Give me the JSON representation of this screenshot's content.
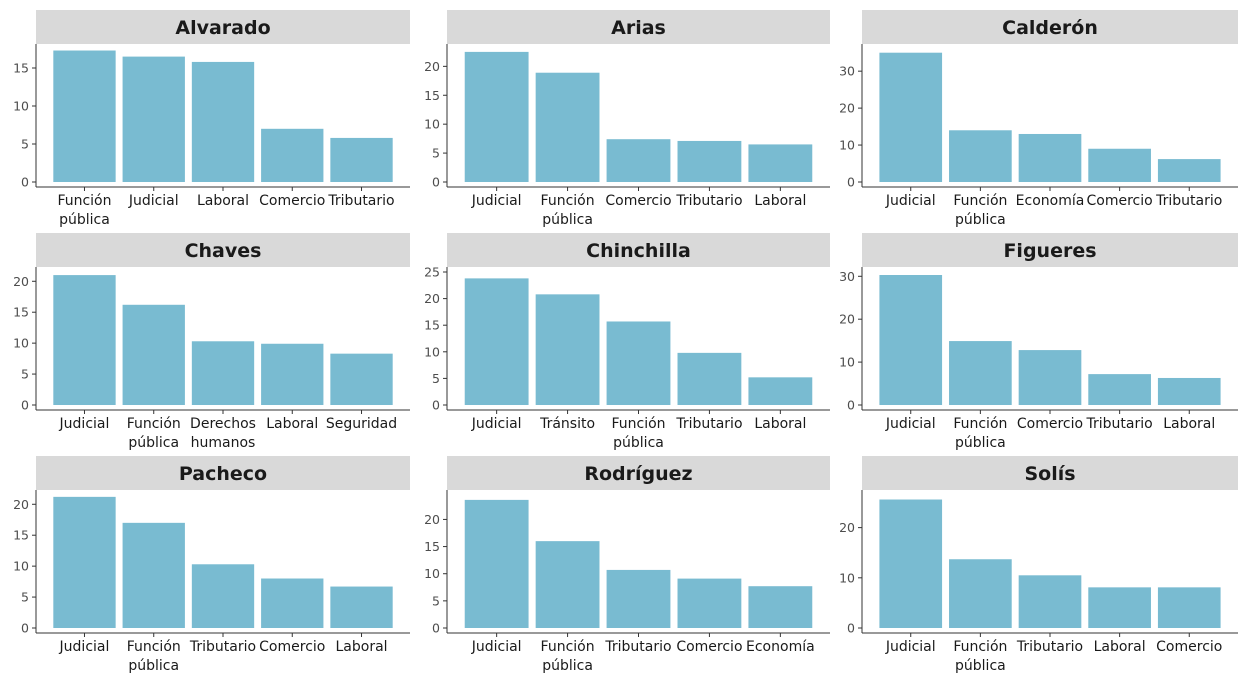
{
  "colors": {
    "bar": "#79bbd1",
    "strip": "#d9d9d9",
    "axis": "#333333",
    "text": "#1a1a1a",
    "tick": "#4d4d4d"
  },
  "chart_data": [
    {
      "type": "bar",
      "title": "Alvarado",
      "categories": [
        "Función pública",
        "Judicial",
        "Laboral",
        "Comercio",
        "Tributario"
      ],
      "values": [
        17.3,
        16.5,
        15.8,
        7.0,
        5.8
      ],
      "ylim": [
        0,
        17.5
      ],
      "yticks": [
        0,
        5,
        10,
        15
      ]
    },
    {
      "type": "bar",
      "title": "Arias",
      "categories": [
        "Judicial",
        "Función pública",
        "Comercio",
        "Tributario",
        "Laboral"
      ],
      "values": [
        22.5,
        18.9,
        7.4,
        7.1,
        6.5
      ],
      "ylim": [
        0,
        23
      ],
      "yticks": [
        0,
        5,
        10,
        15,
        20
      ]
    },
    {
      "type": "bar",
      "title": "Calderón",
      "categories": [
        "Judicial",
        "Función pública",
        "Economía",
        "Comercio",
        "Tributario"
      ],
      "values": [
        35.0,
        14.0,
        13.0,
        9.0,
        6.2
      ],
      "ylim": [
        0,
        36
      ],
      "yticks": [
        0,
        10,
        20,
        30
      ]
    },
    {
      "type": "bar",
      "title": "Chaves",
      "categories": [
        "Judicial",
        "Función pública",
        "Derechos humanos",
        "Laboral",
        "Seguridad"
      ],
      "values": [
        21.0,
        16.2,
        10.3,
        9.9,
        8.3
      ],
      "ylim": [
        0,
        21.5
      ],
      "yticks": [
        0,
        5,
        10,
        15,
        20
      ]
    },
    {
      "type": "bar",
      "title": "Chinchilla",
      "categories": [
        "Judicial",
        "Tránsito",
        "Función pública",
        "Tributario",
        "Laboral"
      ],
      "values": [
        23.8,
        20.8,
        15.7,
        9.8,
        5.2
      ],
      "ylim": [
        0,
        25
      ],
      "yticks": [
        0,
        5,
        10,
        15,
        20,
        25
      ]
    },
    {
      "type": "bar",
      "title": "Figueres",
      "categories": [
        "Judicial",
        "Función pública",
        "Comercio",
        "Tributario",
        "Laboral"
      ],
      "values": [
        30.3,
        14.9,
        12.8,
        7.2,
        6.3
      ],
      "ylim": [
        0,
        31
      ],
      "yticks": [
        0,
        10,
        20,
        30
      ]
    },
    {
      "type": "bar",
      "title": "Pacheco",
      "categories": [
        "Judicial",
        "Función pública",
        "Tributario",
        "Comercio",
        "Laboral"
      ],
      "values": [
        21.2,
        17.0,
        10.3,
        8.0,
        6.7
      ],
      "ylim": [
        0,
        21.5
      ],
      "yticks": [
        0,
        5,
        10,
        15,
        20
      ]
    },
    {
      "type": "bar",
      "title": "Rodríguez",
      "categories": [
        "Judicial",
        "Función pública",
        "Tributario",
        "Comercio",
        "Economía"
      ],
      "values": [
        23.6,
        16.0,
        10.7,
        9.1,
        7.7
      ],
      "ylim": [
        0,
        24.5
      ],
      "yticks": [
        0,
        5,
        10,
        15,
        20
      ]
    },
    {
      "type": "bar",
      "title": "Solís",
      "categories": [
        "Judicial",
        "Función pública",
        "Tributario",
        "Laboral",
        "Comercio"
      ],
      "values": [
        25.6,
        13.7,
        10.5,
        8.1,
        8.1
      ],
      "ylim": [
        0,
        26.5
      ],
      "yticks": [
        0,
        10,
        20
      ]
    }
  ]
}
